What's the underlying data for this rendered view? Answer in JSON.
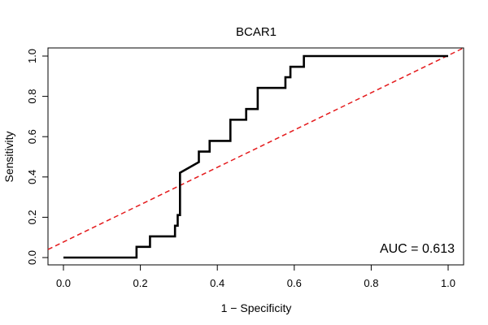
{
  "chart_data": {
    "type": "line",
    "title": "BCAR1",
    "xlabel": "1 − Specificity",
    "ylabel": "Sensitivity",
    "xlim": [
      0,
      1
    ],
    "ylim": [
      0,
      1
    ],
    "xticks": [
      0.0,
      0.2,
      0.4,
      0.6,
      0.8,
      1.0
    ],
    "xtick_labels": [
      "0.0",
      "0.2",
      "0.4",
      "0.6",
      "0.8",
      "1.0"
    ],
    "yticks": [
      0.0,
      0.2,
      0.4,
      0.6,
      0.8,
      1.0
    ],
    "ytick_labels": [
      "0.0",
      "0.2",
      "0.4",
      "0.6",
      "0.8",
      "1.0"
    ],
    "annotation": "AUC = 0.613",
    "series": [
      {
        "name": "ROC curve",
        "color": "#000000",
        "x": [
          0.0,
          0.19,
          0.19,
          0.225,
          0.225,
          0.29,
          0.29,
          0.297,
          0.297,
          0.303,
          0.303,
          0.352,
          0.352,
          0.38,
          0.38,
          0.434,
          0.434,
          0.475,
          0.475,
          0.505,
          0.505,
          0.577,
          0.577,
          0.59,
          0.59,
          0.625,
          0.625,
          1.0
        ],
        "y": [
          0.0,
          0.0,
          0.053,
          0.053,
          0.105,
          0.105,
          0.158,
          0.158,
          0.211,
          0.211,
          0.421,
          0.474,
          0.526,
          0.526,
          0.579,
          0.579,
          0.684,
          0.684,
          0.737,
          0.737,
          0.842,
          0.842,
          0.895,
          0.895,
          0.947,
          0.947,
          1.0,
          1.0
        ]
      },
      {
        "name": "Reference diagonal",
        "color": "#e41a1c",
        "style": "dashed",
        "x": [
          0.0,
          1.0
        ],
        "y": [
          0.0,
          1.0
        ]
      }
    ]
  }
}
